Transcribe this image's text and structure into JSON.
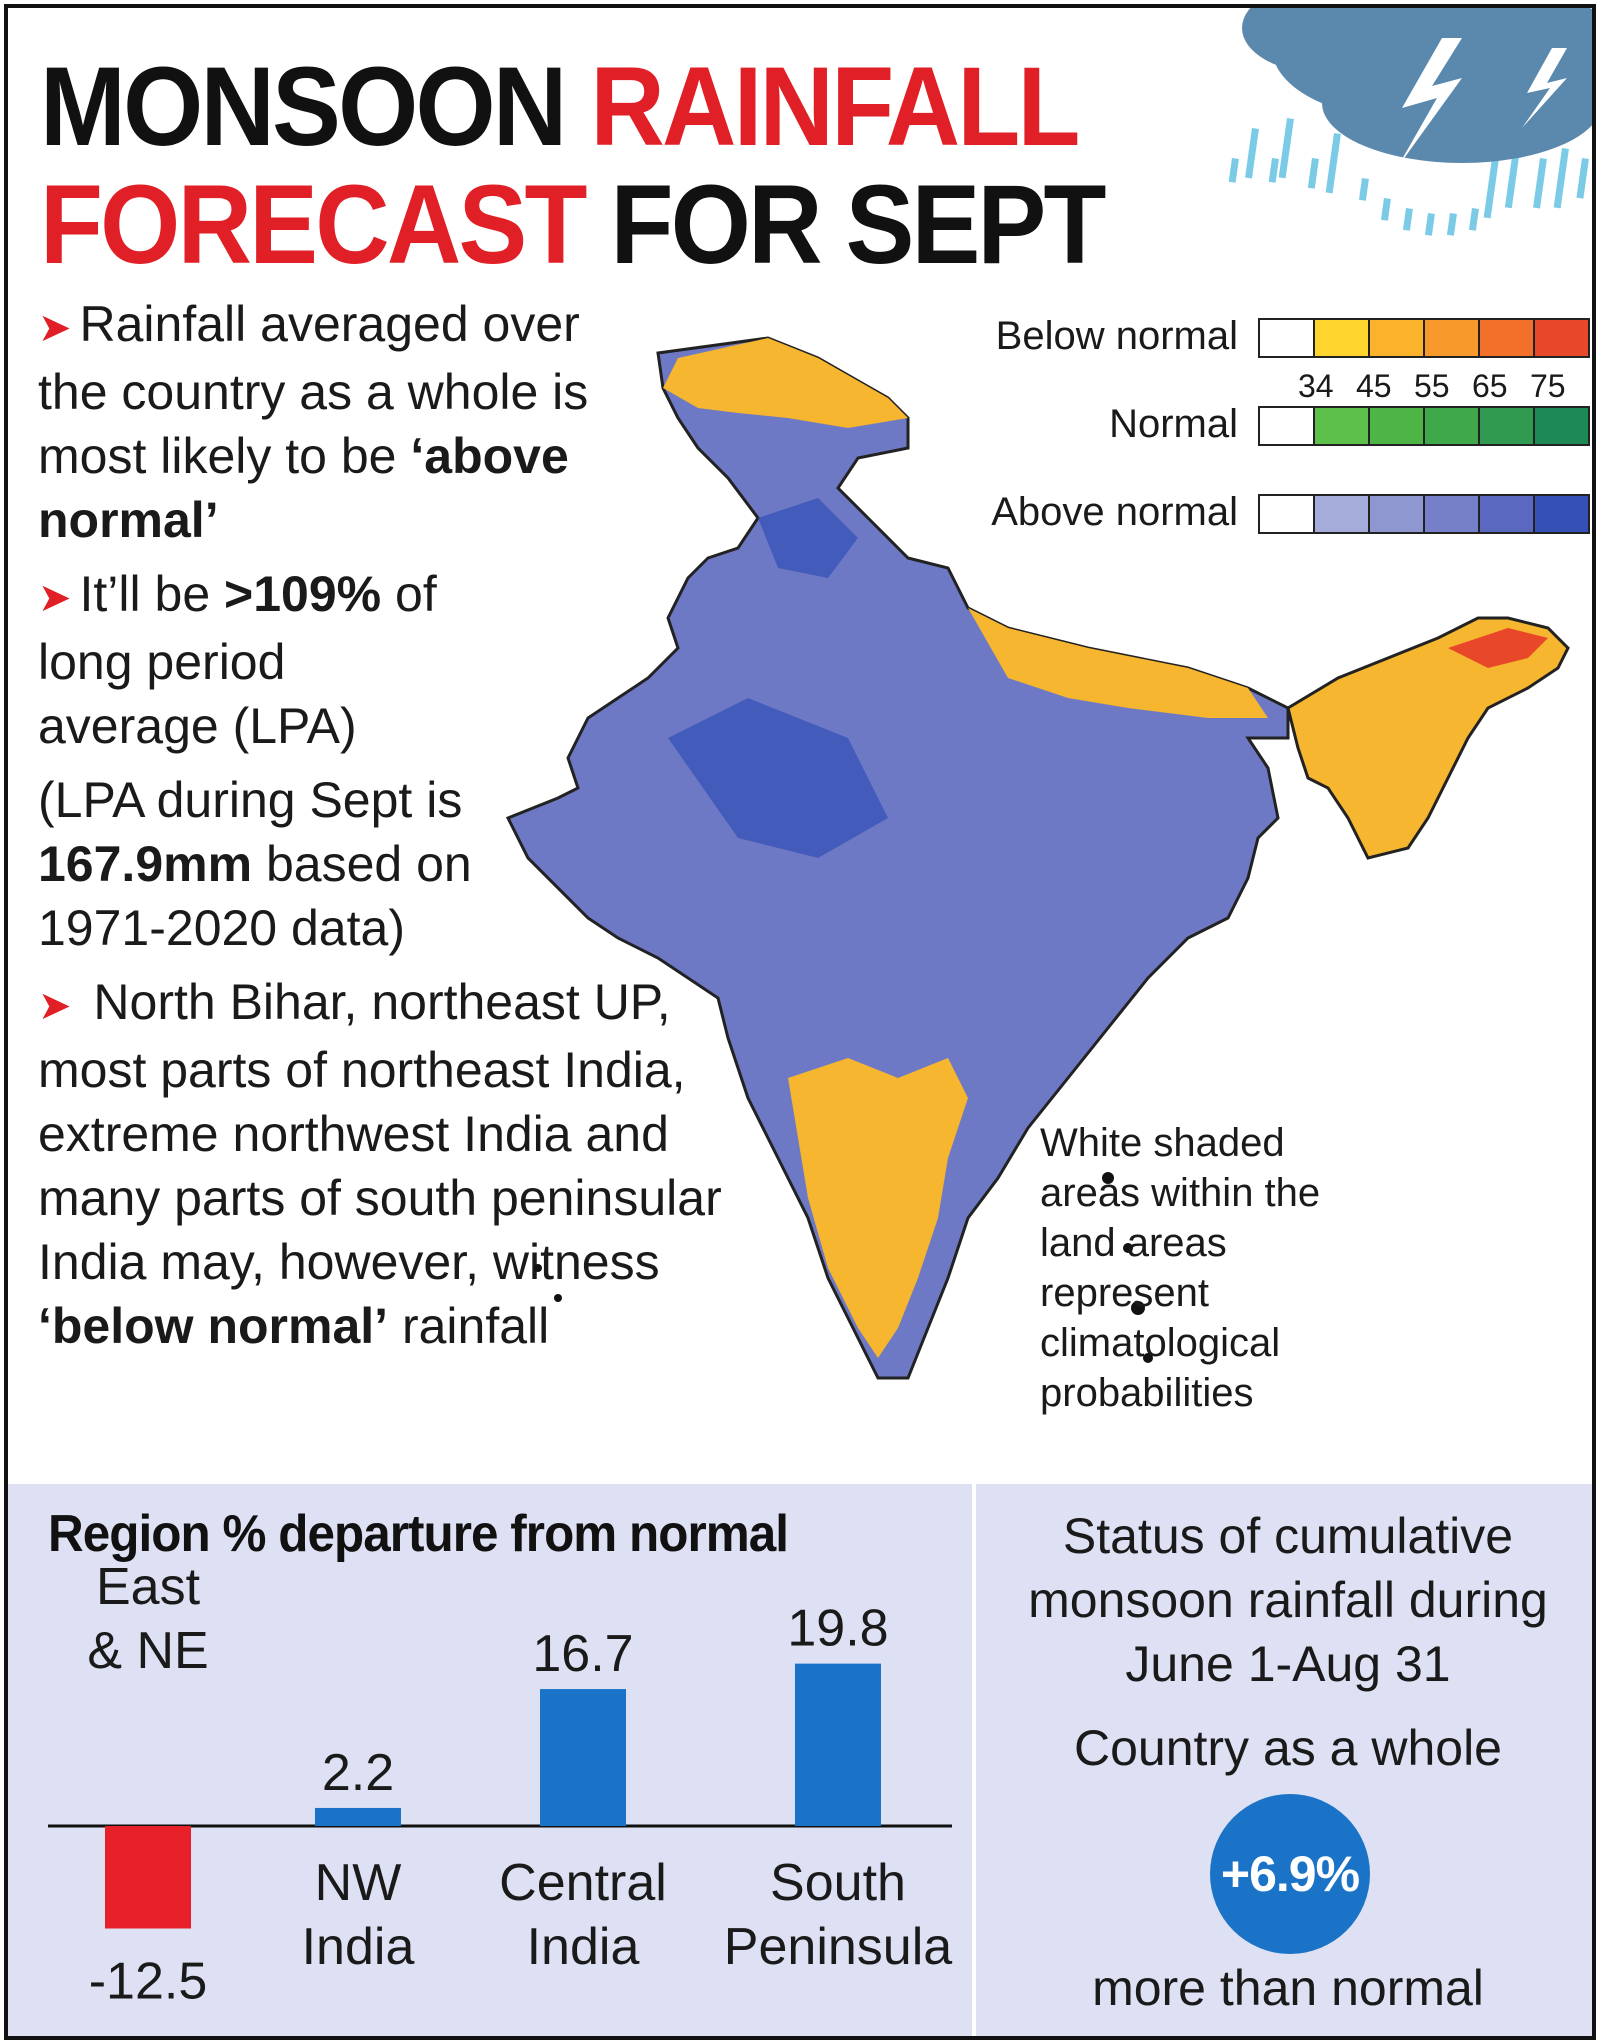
{
  "title": {
    "part1": "MONSOON",
    "part2": "RAINFALL",
    "part3": "FORECAST",
    "part4": "FOR SEPT"
  },
  "bullets": {
    "b1_text": "Rainfall averaged over the country as a whole is most likely to be",
    "b1_bold": "‘above normal’",
    "b2_text1": "It’ll be",
    "b2_bold": ">109%",
    "b2_text2": "of long period average (LPA)",
    "b3_text1": "(LPA during Sept is",
    "b3_bold": "167.9mm",
    "b3_text2": "based on 1971-2020 data)",
    "b4_text": "North Bihar, northeast UP, most parts of northeast India, extreme northwest India and many parts of south peninsular India may, however, witness",
    "b4_bold": "‘below normal’",
    "b4_tail": "rainfall"
  },
  "legend": {
    "below_label": "Below normal",
    "normal_label": "Normal",
    "above_label": "Above normal",
    "ticks": [
      "34",
      "45",
      "55",
      "65",
      "75"
    ],
    "below_colors": [
      "#ffffff",
      "#ffd52e",
      "#fbb32b",
      "#f79a2b",
      "#f2702a",
      "#e8472a"
    ],
    "normal_colors": [
      "#ffffff",
      "#5cc04a",
      "#4db445",
      "#3fa84a",
      "#2f9a50",
      "#1d8a56"
    ],
    "above_colors": [
      "#ffffff",
      "#a6acd9",
      "#8f97d0",
      "#7580c8",
      "#5a69bf",
      "#3551b8"
    ]
  },
  "map_note": "White shaded areas within the land areas represent climatological probabilities",
  "chart_data": {
    "type": "bar",
    "title": "Region % departure from normal",
    "categories": [
      "East & NE",
      "NW India",
      "Central India",
      "South Peninsula"
    ],
    "values": [
      -12.5,
      2.2,
      16.7,
      19.8
    ],
    "value_labels": [
      "-12.5",
      "2.2",
      "16.7",
      "19.8"
    ],
    "colors": [
      "#e8202a",
      "#1a73c7",
      "#1a73c7",
      "#1a73c7"
    ],
    "ylim": [
      -12.5,
      19.8
    ],
    "grid": false
  },
  "status": {
    "heading": "Status of cumulative monsoon rainfall during June 1-Aug 31",
    "country_label": "Country as a whole",
    "value": "+6.9%",
    "tail": "more than normal"
  }
}
